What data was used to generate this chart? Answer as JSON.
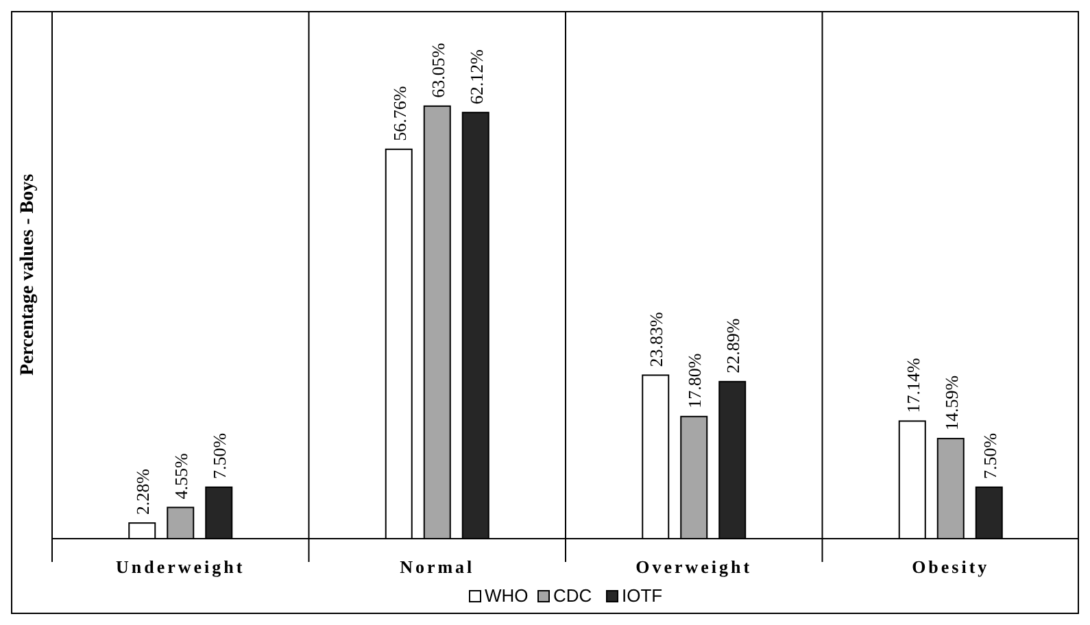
{
  "chart_data": {
    "type": "bar",
    "ylabel": "Percentage values - Boys",
    "categories": [
      "Underweight",
      "Normal",
      "Overweight",
      "Obesity"
    ],
    "series": [
      {
        "name": "WHO",
        "color": "#ffffff",
        "values": [
          2.28,
          56.76,
          23.83,
          17.14
        ],
        "value_labels": [
          "2.28%",
          "56.76%",
          "23.83%",
          "17.14%"
        ]
      },
      {
        "name": "CDC",
        "color": "#a6a6a6",
        "values": [
          4.55,
          63.05,
          17.8,
          14.59
        ],
        "value_labels": [
          "4.55%",
          "63.05%",
          "17.80%",
          "14.59%"
        ]
      },
      {
        "name": "IOTF",
        "color": "#262626",
        "values": [
          7.5,
          62.12,
          22.89,
          7.5
        ],
        "value_labels": [
          "7.50%",
          "62.12%",
          "22.89%",
          "7.50%"
        ]
      }
    ],
    "legend": "bottom",
    "grid": "x"
  }
}
